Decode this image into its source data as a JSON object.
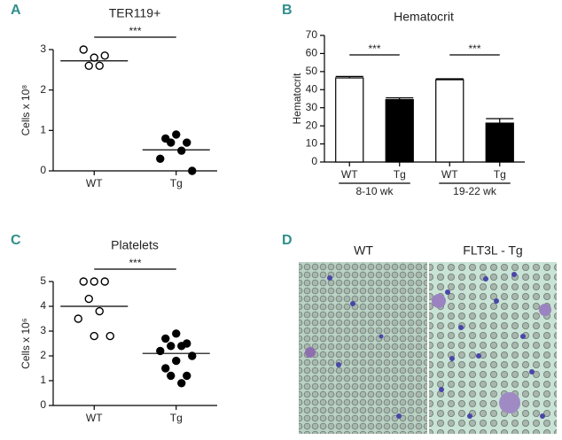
{
  "chart_data": [
    {
      "panel": "A",
      "type": "dot",
      "title": "TER119+",
      "ylabel": "Cells x 10⁸",
      "categories": [
        "WT",
        "Tg"
      ],
      "values": [
        [
          2.8,
          3.0,
          2.85,
          2.6,
          2.6
        ],
        [
          0.9,
          0.8,
          0.7,
          0.7,
          0.5,
          0.3,
          0.0
        ]
      ],
      "center_lines": [
        2.72,
        0.52
      ],
      "marker_fill": [
        "open",
        "filled"
      ],
      "ylim": [
        0,
        3
      ],
      "yticks": [
        0,
        1,
        2,
        3
      ],
      "significance": "***"
    },
    {
      "panel": "B",
      "type": "bar",
      "title": "Hematocrit",
      "ylabel": "Hematocrit",
      "categories": [
        "WT",
        "Tg",
        "WT",
        "Tg"
      ],
      "groups": [
        "8-10 wk",
        "19-22 wk"
      ],
      "values": [
        46.5,
        34.5,
        45.5,
        21.5
      ],
      "errors": [
        0.8,
        1.0,
        0.5,
        2.5
      ],
      "colors": [
        "#ffffff",
        "#000000",
        "#ffffff",
        "#000000"
      ],
      "ylim": [
        0,
        70
      ],
      "yticks": [
        0,
        10,
        20,
        30,
        40,
        50,
        60,
        70
      ],
      "significance": [
        "***",
        "***"
      ]
    },
    {
      "panel": "C",
      "type": "dot",
      "title": "Platelets",
      "ylabel": "Cells x 10⁶",
      "categories": [
        "WT",
        "Tg"
      ],
      "values": [
        [
          5.0,
          5.0,
          5.0,
          4.3,
          3.8,
          3.5,
          2.8,
          2.8
        ],
        [
          2.9,
          2.7,
          2.5,
          2.4,
          2.4,
          2.2,
          2.0,
          1.8,
          1.5,
          1.2,
          1.2,
          0.9
        ]
      ],
      "center_lines": [
        4.0,
        2.1
      ],
      "marker_fill": [
        "open",
        "filled"
      ],
      "ylim": [
        0,
        5
      ],
      "yticks": [
        0,
        1,
        2,
        3,
        4,
        5
      ],
      "significance": "***"
    }
  ],
  "micrograph": {
    "panel": "D",
    "labels": [
      "WT",
      "FLT3L - Tg"
    ]
  }
}
